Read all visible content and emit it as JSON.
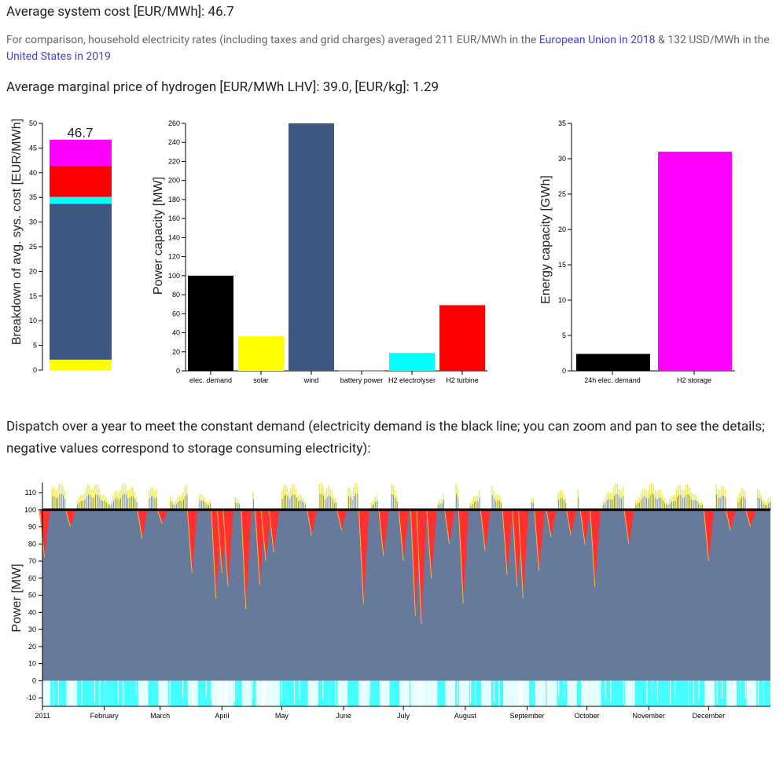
{
  "headings": {
    "system_cost": "Average system cost [EUR/MWh]: 46.7",
    "comparison_before": "For comparison, household electricity rates (including taxes and grid charges) averaged 211 EUR/MWh in the ",
    "comparison_link1": "European Union in 2018",
    "comparison_mid": " & 132 USD/MWh in the ",
    "comparison_link2": "United States in 2019",
    "hydrogen_price": "Average marginal price of hydrogen [EUR/MWh LHV]: 39.0, [EUR/kg]: 1.29",
    "dispatch": "Dispatch over a year to meet the constant demand (electricity demand is the black line; you can zoom and pan to see the details; negative values correspond to storage consuming electricity):"
  },
  "colors": {
    "solar": "#ffff00",
    "wind": "#3e5882",
    "battery": "#00ffff",
    "h2_electrolyser": "#00ffff",
    "h2_turbine": "#ff0000",
    "h2_storage": "#ff00ff",
    "demand": "#000000",
    "dispatch_wind": "#677a9c",
    "dispatch_solar": "#eded68",
    "dispatch_turbine": "#ff3030",
    "dispatch_electrolyser": "#44ffff"
  },
  "chart_data": [
    {
      "type": "bar",
      "subtype": "stacked",
      "ylabel": "Breakdown of avg. sys. cost [EUR/MWh]",
      "ylim": [
        0,
        50
      ],
      "yticks": [
        0,
        5,
        10,
        15,
        20,
        25,
        30,
        35,
        40,
        45,
        50
      ],
      "total_label": "46.7",
      "series": [
        {
          "color": "#ffff00",
          "value": 2.1
        },
        {
          "color": "#3e5882",
          "value": 31.6
        },
        {
          "color": "#00ffff",
          "value": 1.4
        },
        {
          "color": "#ff0000",
          "value": 6.3
        },
        {
          "color": "#ff00ff",
          "value": 5.3
        }
      ]
    },
    {
      "type": "bar",
      "ylabel": "Power capacity [MW]",
      "ylim": [
        0,
        260
      ],
      "yticks": [
        0,
        20,
        40,
        60,
        80,
        100,
        120,
        140,
        160,
        180,
        200,
        220,
        240,
        260
      ],
      "categories": [
        "elec. demand",
        "solar",
        "wind",
        "battery power",
        "H2 electrolyser",
        "H2 turbine"
      ],
      "values": [
        100,
        36.5,
        260,
        0.5,
        18.8,
        69
      ],
      "colors": [
        "#000000",
        "#ffff00",
        "#3e5882",
        "#666666",
        "#00ffff",
        "#ff0000"
      ]
    },
    {
      "type": "bar",
      "ylabel": "Energy capacity [GWh]",
      "ylim": [
        0,
        35
      ],
      "yticks": [
        0,
        5,
        10,
        15,
        20,
        25,
        30,
        35
      ],
      "categories": [
        "24h elec. demand",
        "H2 storage"
      ],
      "values": [
        2.4,
        31
      ],
      "colors": [
        "#000000",
        "#ff00ff"
      ]
    },
    {
      "type": "area",
      "ylabel": "Power [MW]",
      "ylim": [
        -15,
        116
      ],
      "yticks": [
        -10,
        0,
        10,
        20,
        30,
        40,
        50,
        60,
        70,
        80,
        90,
        100,
        110
      ],
      "xlabels": [
        "2011",
        "February",
        "March",
        "April",
        "May",
        "June",
        "July",
        "August",
        "September",
        "October",
        "November",
        "December"
      ],
      "demand": 100,
      "top_range": [
        100,
        116
      ],
      "electrolyser_range": [
        -15,
        0
      ],
      "deficit_events": [
        {
          "day": 1,
          "min": 72
        },
        {
          "day": 14,
          "min": 90
        },
        {
          "day": 50,
          "min": 83
        },
        {
          "day": 60,
          "min": 92
        },
        {
          "day": 75,
          "min": 63
        },
        {
          "day": 87,
          "min": 48
        },
        {
          "day": 90,
          "min": 63
        },
        {
          "day": 93,
          "min": 55
        },
        {
          "day": 102,
          "min": 42
        },
        {
          "day": 109,
          "min": 56
        },
        {
          "day": 112,
          "min": 70
        },
        {
          "day": 116,
          "min": 75
        },
        {
          "day": 135,
          "min": 85
        },
        {
          "day": 150,
          "min": 88
        },
        {
          "day": 161,
          "min": 45
        },
        {
          "day": 171,
          "min": 73
        },
        {
          "day": 181,
          "min": 70
        },
        {
          "day": 187,
          "min": 38
        },
        {
          "day": 190,
          "min": 33
        },
        {
          "day": 195,
          "min": 60
        },
        {
          "day": 204,
          "min": 80
        },
        {
          "day": 211,
          "min": 45
        },
        {
          "day": 222,
          "min": 76
        },
        {
          "day": 233,
          "min": 62
        },
        {
          "day": 238,
          "min": 55
        },
        {
          "day": 241,
          "min": 48
        },
        {
          "day": 249,
          "min": 64
        },
        {
          "day": 255,
          "min": 84
        },
        {
          "day": 265,
          "min": 85
        },
        {
          "day": 272,
          "min": 80
        },
        {
          "day": 277,
          "min": 55
        },
        {
          "day": 294,
          "min": 80
        },
        {
          "day": 334,
          "min": 70
        },
        {
          "day": 345,
          "min": 88
        },
        {
          "day": 355,
          "min": 90
        }
      ]
    }
  ]
}
